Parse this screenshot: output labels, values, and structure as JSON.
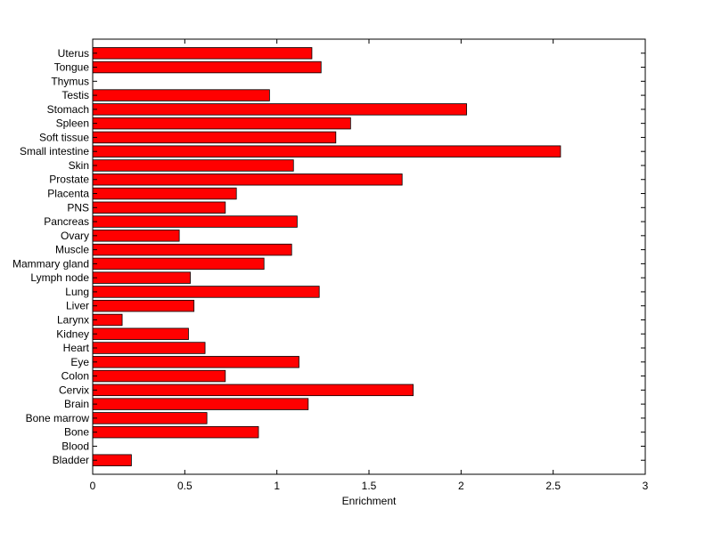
{
  "chart_data": {
    "type": "bar",
    "orientation": "horizontal",
    "title": "",
    "xlabel": "Enrichment",
    "ylabel": "",
    "xlim": [
      0,
      3
    ],
    "xticks": [
      "0",
      "0.5",
      "1",
      "1.5",
      "2",
      "2.5",
      "3"
    ],
    "grid": false,
    "legend": "none",
    "bar_color": "#ff0000",
    "categories": [
      "Bladder",
      "Blood",
      "Bone",
      "Bone marrow",
      "Brain",
      "Cervix",
      "Colon",
      "Eye",
      "Heart",
      "Kidney",
      "Larynx",
      "Liver",
      "Lung",
      "Lymph node",
      "Mammary gland",
      "Muscle",
      "Ovary",
      "Pancreas",
      "PNS",
      "Placenta",
      "Prostate",
      "Skin",
      "Small intestine",
      "Soft tissue",
      "Spleen",
      "Stomach",
      "Testis",
      "Thymus",
      "Tongue",
      "Uterus"
    ],
    "values": [
      0.21,
      0,
      0.9,
      0.62,
      1.17,
      1.74,
      0.72,
      1.12,
      0.61,
      0.52,
      0.16,
      0.55,
      1.23,
      0.53,
      0.93,
      1.08,
      0.47,
      1.11,
      0.72,
      0.78,
      1.68,
      1.09,
      2.54,
      1.32,
      1.4,
      2.03,
      0.96,
      0,
      1.24,
      1.19
    ]
  }
}
